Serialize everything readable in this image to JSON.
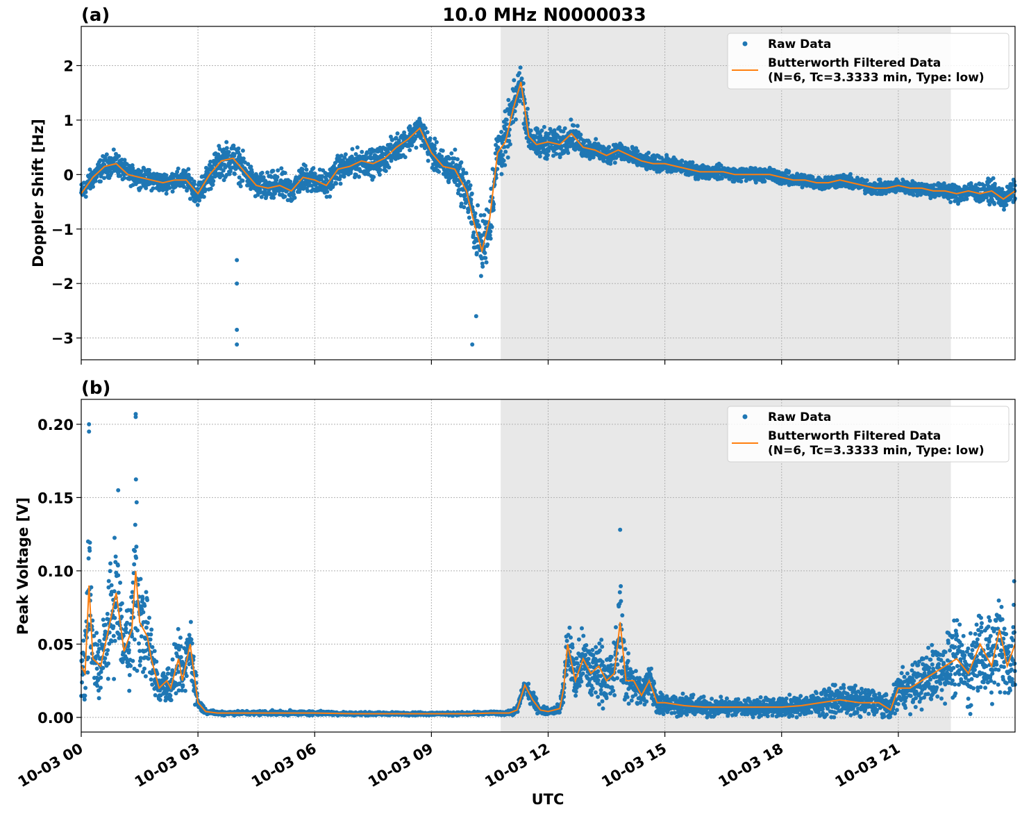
{
  "figure": {
    "title": "10.0 MHz N0000033",
    "xlabel": "UTC",
    "shade_color": "#e8e8e8",
    "grid_color": "#b0b0b0",
    "raw_color": "#1f77b4",
    "filtered_color": "#ff7f0e"
  },
  "chart_data": [
    {
      "type": "scatter",
      "panel_label": "(a)",
      "ylabel": "Doppler Shift [Hz]",
      "xlim": [
        0,
        24
      ],
      "ylim": [
        -3.4,
        2.72
      ],
      "x_ticks": [
        0,
        3,
        6,
        9,
        12,
        15,
        18,
        21
      ],
      "x_tick_labels": [
        "10-03 00",
        "10-03 03",
        "10-03 06",
        "10-03 09",
        "10-03 12",
        "10-03 15",
        "10-03 18",
        "10-03 21"
      ],
      "y_ticks": [
        -3,
        -2,
        -1,
        0,
        1,
        2
      ],
      "y_tick_labels": [
        "−3",
        "−2",
        "−1",
        "0",
        "1",
        "2"
      ],
      "grid": true,
      "shaded_region": [
        10.78,
        22.35
      ],
      "legend": {
        "position": "top-right",
        "entries": [
          "Raw Data",
          "Butterworth Filtered Data",
          "(N=6, Tc=3.3333 min, Type: low)"
        ]
      },
      "series": [
        {
          "name": "Butterworth Filtered Data",
          "type": "line",
          "x": [
            0,
            0.3,
            0.6,
            0.9,
            1.2,
            1.5,
            1.8,
            2.1,
            2.4,
            2.7,
            3.0,
            3.3,
            3.6,
            3.9,
            4.2,
            4.5,
            4.8,
            5.1,
            5.4,
            5.7,
            6.0,
            6.3,
            6.6,
            6.9,
            7.2,
            7.5,
            7.8,
            8.1,
            8.4,
            8.7,
            9.0,
            9.3,
            9.6,
            9.9,
            10.1,
            10.3,
            10.5,
            10.7,
            10.9,
            11.1,
            11.3,
            11.5,
            11.7,
            12.0,
            12.3,
            12.6,
            12.9,
            13.2,
            13.5,
            13.8,
            14.1,
            14.4,
            14.7,
            15.0,
            15.3,
            15.6,
            15.9,
            16.2,
            16.5,
            16.8,
            17.1,
            17.4,
            17.7,
            18.0,
            18.3,
            18.6,
            18.9,
            19.2,
            19.5,
            19.8,
            20.1,
            20.4,
            20.7,
            21.0,
            21.3,
            21.6,
            21.9,
            22.2,
            22.5,
            22.8,
            23.1,
            23.4,
            23.7,
            24.0
          ],
          "y": [
            -0.35,
            -0.05,
            0.15,
            0.2,
            0.0,
            -0.05,
            -0.1,
            -0.15,
            -0.1,
            -0.1,
            -0.35,
            0.0,
            0.25,
            0.3,
            0.05,
            -0.2,
            -0.25,
            -0.2,
            -0.3,
            -0.05,
            -0.1,
            -0.2,
            0.1,
            0.15,
            0.25,
            0.2,
            0.3,
            0.5,
            0.65,
            0.85,
            0.4,
            0.15,
            0.1,
            -0.3,
            -0.9,
            -1.4,
            -0.8,
            0.4,
            0.6,
            1.2,
            1.7,
            0.7,
            0.55,
            0.6,
            0.55,
            0.75,
            0.5,
            0.45,
            0.35,
            0.45,
            0.35,
            0.25,
            0.2,
            0.2,
            0.15,
            0.1,
            0.05,
            0.05,
            0.05,
            0.0,
            0.0,
            0.0,
            0.0,
            -0.05,
            -0.1,
            -0.1,
            -0.15,
            -0.15,
            -0.1,
            -0.15,
            -0.2,
            -0.25,
            -0.25,
            -0.2,
            -0.25,
            -0.25,
            -0.3,
            -0.3,
            -0.35,
            -0.3,
            -0.35,
            -0.3,
            -0.45,
            -0.3
          ]
        },
        {
          "name": "Raw Data",
          "type": "scatter",
          "spread": [
            0.28,
            0.3,
            0.3,
            0.3,
            0.25,
            0.25,
            0.25,
            0.25,
            0.25,
            0.3,
            0.3,
            0.4,
            0.45,
            0.45,
            0.4,
            0.35,
            0.4,
            0.4,
            0.35,
            0.35,
            0.35,
            0.35,
            0.35,
            0.35,
            0.35,
            0.35,
            0.35,
            0.35,
            0.35,
            0.35,
            0.4,
            0.4,
            0.5,
            0.6,
            0.7,
            0.8,
            0.8,
            0.8,
            0.7,
            0.6,
            0.55,
            0.45,
            0.4,
            0.4,
            0.4,
            0.35,
            0.3,
            0.25,
            0.25,
            0.25,
            0.25,
            0.22,
            0.2,
            0.2,
            0.2,
            0.2,
            0.18,
            0.18,
            0.18,
            0.18,
            0.18,
            0.18,
            0.18,
            0.18,
            0.18,
            0.18,
            0.18,
            0.18,
            0.18,
            0.18,
            0.18,
            0.18,
            0.18,
            0.18,
            0.18,
            0.18,
            0.2,
            0.22,
            0.25,
            0.25,
            0.25,
            0.28,
            0.3,
            0.3
          ],
          "outliers": {
            "x": [
              4.0,
              4.0,
              4.0,
              4.0,
              10.05,
              10.15
            ],
            "y": [
              -1.57,
              -2.0,
              -2.85,
              -3.12,
              -3.12,
              -2.6
            ]
          }
        }
      ]
    },
    {
      "type": "scatter",
      "panel_label": "(b)",
      "ylabel": "Peak Voltage [V]",
      "xlim": [
        0,
        24
      ],
      "ylim": [
        -0.01,
        0.217
      ],
      "x_ticks": [
        0,
        3,
        6,
        9,
        12,
        15,
        18,
        21
      ],
      "x_tick_labels": [
        "10-03 00",
        "10-03 03",
        "10-03 06",
        "10-03 09",
        "10-03 12",
        "10-03 15",
        "10-03 18",
        "10-03 21"
      ],
      "y_ticks": [
        0.0,
        0.05,
        0.1,
        0.15,
        0.2
      ],
      "y_tick_labels": [
        "0.00",
        "0.05",
        "0.10",
        "0.15",
        "0.20"
      ],
      "grid": true,
      "shaded_region": [
        10.78,
        22.35
      ],
      "legend": {
        "position": "top-right",
        "entries": [
          "Raw Data",
          "Butterworth Filtered Data",
          "(N=6, Tc=3.3333 min, Type: low)"
        ]
      },
      "series": [
        {
          "name": "Butterworth Filtered Data",
          "type": "line",
          "x": [
            0,
            0.1,
            0.2,
            0.3,
            0.5,
            0.7,
            0.9,
            1.1,
            1.3,
            1.4,
            1.5,
            1.7,
            1.8,
            1.9,
            2.0,
            2.2,
            2.3,
            2.5,
            2.6,
            2.8,
            2.9,
            3.0,
            3.2,
            3.5,
            4.0,
            5.0,
            6.0,
            7.0,
            8.0,
            9.0,
            10.0,
            10.5,
            11.0,
            11.2,
            11.4,
            11.6,
            11.8,
            12.0,
            12.3,
            12.4,
            12.5,
            12.7,
            12.9,
            13.1,
            13.3,
            13.5,
            13.7,
            13.85,
            14.0,
            14.2,
            14.4,
            14.6,
            14.8,
            15.0,
            15.5,
            16.0,
            16.5,
            17.0,
            17.5,
            18.0,
            18.5,
            19.0,
            19.5,
            20.0,
            20.5,
            20.8,
            21.0,
            21.3,
            21.6,
            21.9,
            22.2,
            22.5,
            22.8,
            23.1,
            23.4,
            23.6,
            23.8,
            24.0
          ],
          "y": [
            0.035,
            0.03,
            0.09,
            0.04,
            0.035,
            0.06,
            0.085,
            0.045,
            0.06,
            0.1,
            0.065,
            0.055,
            0.04,
            0.03,
            0.02,
            0.025,
            0.02,
            0.04,
            0.025,
            0.05,
            0.03,
            0.01,
            0.004,
            0.003,
            0.003,
            0.003,
            0.003,
            0.0025,
            0.0025,
            0.0025,
            0.0025,
            0.003,
            0.003,
            0.005,
            0.022,
            0.012,
            0.005,
            0.004,
            0.006,
            0.02,
            0.05,
            0.025,
            0.04,
            0.03,
            0.035,
            0.025,
            0.03,
            0.065,
            0.025,
            0.025,
            0.015,
            0.025,
            0.01,
            0.01,
            0.008,
            0.007,
            0.007,
            0.007,
            0.007,
            0.007,
            0.008,
            0.01,
            0.012,
            0.01,
            0.01,
            0.005,
            0.02,
            0.02,
            0.025,
            0.03,
            0.035,
            0.04,
            0.03,
            0.05,
            0.035,
            0.06,
            0.035,
            0.05
          ]
        },
        {
          "name": "Raw Data",
          "type": "scatter",
          "spread": [
            0.03,
            0.035,
            0.09,
            0.035,
            0.03,
            0.045,
            0.06,
            0.035,
            0.05,
            0.1,
            0.05,
            0.04,
            0.03,
            0.025,
            0.015,
            0.02,
            0.02,
            0.03,
            0.02,
            0.035,
            0.025,
            0.008,
            0.002,
            0.002,
            0.002,
            0.002,
            0.002,
            0.0015,
            0.0015,
            0.0015,
            0.0015,
            0.0015,
            0.002,
            0.004,
            0.006,
            0.008,
            0.004,
            0.003,
            0.005,
            0.015,
            0.03,
            0.025,
            0.03,
            0.028,
            0.03,
            0.025,
            0.03,
            0.055,
            0.025,
            0.02,
            0.015,
            0.02,
            0.012,
            0.01,
            0.01,
            0.009,
            0.009,
            0.009,
            0.009,
            0.009,
            0.01,
            0.013,
            0.015,
            0.015,
            0.012,
            0.01,
            0.018,
            0.02,
            0.025,
            0.03,
            0.03,
            0.035,
            0.035,
            0.045,
            0.04,
            0.055,
            0.04,
            0.06
          ],
          "outliers": {
            "x": [
              0.2,
              0.2,
              1.4,
              1.4,
              0.95,
              13.85
            ],
            "y": [
              0.2,
              0.195,
              0.205,
              0.207,
              0.155,
              0.128
            ]
          }
        }
      ]
    }
  ]
}
